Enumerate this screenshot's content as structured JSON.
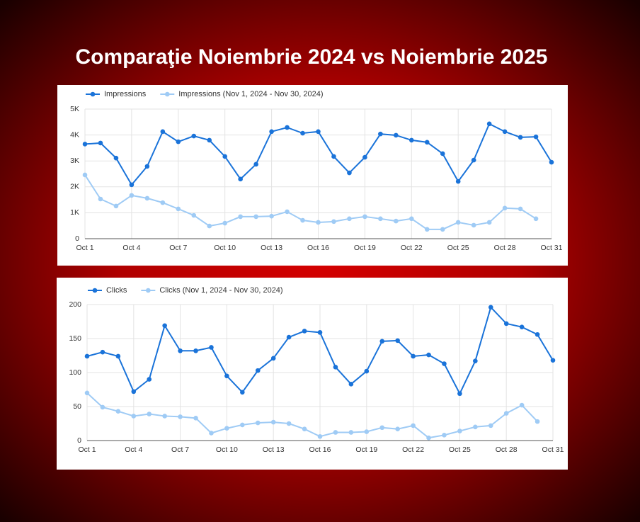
{
  "title": "Comparaţie Noiembrie 2024 vs Noiembrie 2025",
  "chart_data": [
    {
      "type": "line",
      "categories": [
        "Oct 1",
        null,
        null,
        "Oct 4",
        null,
        null,
        "Oct 7",
        null,
        null,
        "Oct 10",
        null,
        null,
        "Oct 13",
        null,
        null,
        "Oct 16",
        null,
        null,
        "Oct 19",
        null,
        null,
        "Oct 22",
        null,
        null,
        "Oct 25",
        null,
        null,
        "Oct 28",
        null,
        null,
        "Oct 31"
      ],
      "series": [
        {
          "name": "Impressions",
          "color": "#1a73d9",
          "values": [
            3650,
            3690,
            3110,
            2080,
            2790,
            4130,
            3740,
            3960,
            3800,
            3170,
            2300,
            2870,
            4130,
            4290,
            4070,
            4130,
            3170,
            2540,
            3140,
            4040,
            3990,
            3800,
            3720,
            3280,
            2210,
            3030,
            4430,
            4130,
            3910,
            3930,
            2950
          ]
        },
        {
          "name": "Impressions (Nov 1, 2024 - Nov 30, 2024)",
          "color": "#9fcbf5",
          "values": [
            2460,
            1530,
            1260,
            1670,
            1560,
            1390,
            1150,
            900,
            490,
            600,
            850,
            850,
            870,
            1040,
            710,
            630,
            660,
            770,
            850,
            770,
            680,
            770,
            360,
            360,
            630,
            520,
            630,
            1180,
            1150,
            770,
            null
          ]
        }
      ],
      "ylim": [
        0,
        5000
      ],
      "yticks": [
        0,
        {
          "value": 1000,
          "label": "1K"
        },
        {
          "value": 2000,
          "label": "2K"
        },
        {
          "value": 3000,
          "label": "3K"
        },
        {
          "value": 4000,
          "label": "4K"
        },
        {
          "value": 5000,
          "label": "5K"
        }
      ],
      "grid": true,
      "legend": "top"
    },
    {
      "type": "line",
      "categories": [
        "Oct 1",
        null,
        null,
        "Oct 4",
        null,
        null,
        "Oct 7",
        null,
        null,
        "Oct 10",
        null,
        null,
        "Oct 13",
        null,
        null,
        "Oct 16",
        null,
        null,
        "Oct 19",
        null,
        null,
        "Oct 22",
        null,
        null,
        "Oct 25",
        null,
        null,
        "Oct 28",
        null,
        null,
        "Oct 31"
      ],
      "series": [
        {
          "name": "Clicks",
          "color": "#1a73d9",
          "values": [
            124,
            130,
            124,
            72,
            90,
            169,
            132,
            132,
            137,
            95,
            71,
            103,
            121,
            152,
            161,
            159,
            108,
            83,
            102,
            146,
            147,
            124,
            126,
            113,
            69,
            117,
            196,
            172,
            167,
            156,
            118
          ]
        },
        {
          "name": "Clicks (Nov 1, 2024 - Nov 30, 2024)",
          "color": "#9fcbf5",
          "values": [
            70,
            49,
            43,
            36,
            39,
            36,
            35,
            33,
            11,
            18,
            23,
            26,
            27,
            25,
            17,
            6,
            12,
            12,
            13,
            19,
            17,
            22,
            4,
            8,
            14,
            20,
            22,
            40,
            52,
            28,
            null
          ]
        }
      ],
      "ylim": [
        0,
        200
      ],
      "yticks": [
        0,
        50,
        100,
        150,
        200
      ],
      "grid": true,
      "legend": "top"
    }
  ]
}
